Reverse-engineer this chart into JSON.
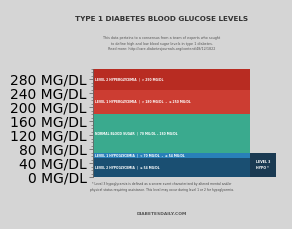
{
  "title": "TYPE 1 DIABETES BLOOD GLUCOSE LEVELS",
  "subtitle": "This data pertains to a consensus from a team of experts who sought\nto define high and low blood sugar levels in type 1 diabetes.\nRead more: http://care.diabetesjournals.org/content/48/12/1822",
  "footer_note": "* Level 3 hypoglycemia is defined as a severe event characterized by altered mental and/or\nphysical status requiring assistance. This level may occur during level 1 or 2 for hypoglycemia.",
  "footer_brand": "DIABETESDAILY.COM",
  "bg_color": "#d5d5d5",
  "header_bg": "#e5e5e5",
  "footer_bg": "#d5d5d5",
  "bars": [
    {
      "label": "LEVEL 2 HYPERGLYCEMIA  |  > 250 MG/DL",
      "ymin": 250,
      "ymax": 310,
      "color": "#b82c22"
    },
    {
      "label": "LEVEL 1 HYPERGLYCEMIA  |  > 180 MG/DL  –  ≤ 250 MG/DL",
      "ymin": 180,
      "ymax": 250,
      "color": "#cc3d32"
    },
    {
      "label": "NORMAL BLOOD SUGAR  |  70 MG/DL – 180 MG/DL",
      "ymin": 70,
      "ymax": 180,
      "color": "#3aaa8e"
    },
    {
      "label": "LEVEL 1 HYPOGLYCEMIA  |  < 70 MG/DL  –  ≥ 54 MG/DL",
      "ymin": 54,
      "ymax": 70,
      "color": "#2980b9"
    },
    {
      "label": "LEVEL 2 HYPOGLYCEMIA  |  ≤ 54 MG/DL",
      "ymin": 0,
      "ymax": 54,
      "color": "#1a4f72"
    }
  ],
  "level3_box": {
    "label": "LEVEL 3\nHYPO *",
    "color": "#1a3a52"
  },
  "yticks": [
    0,
    40,
    80,
    120,
    160,
    200,
    240,
    280
  ],
  "ytick_labels": [
    "0 MG/DL",
    "40 MG/DL",
    "80 MG/DL",
    "120 MG/DL",
    "160 MG/DL",
    "200 MG/DL",
    "240 MG/DL",
    "280 MG/DL"
  ],
  "ymax": 310,
  "axis_color": "#666666",
  "tick_color": "#555555",
  "title_color": "#333333",
  "subtitle_color": "#555555"
}
